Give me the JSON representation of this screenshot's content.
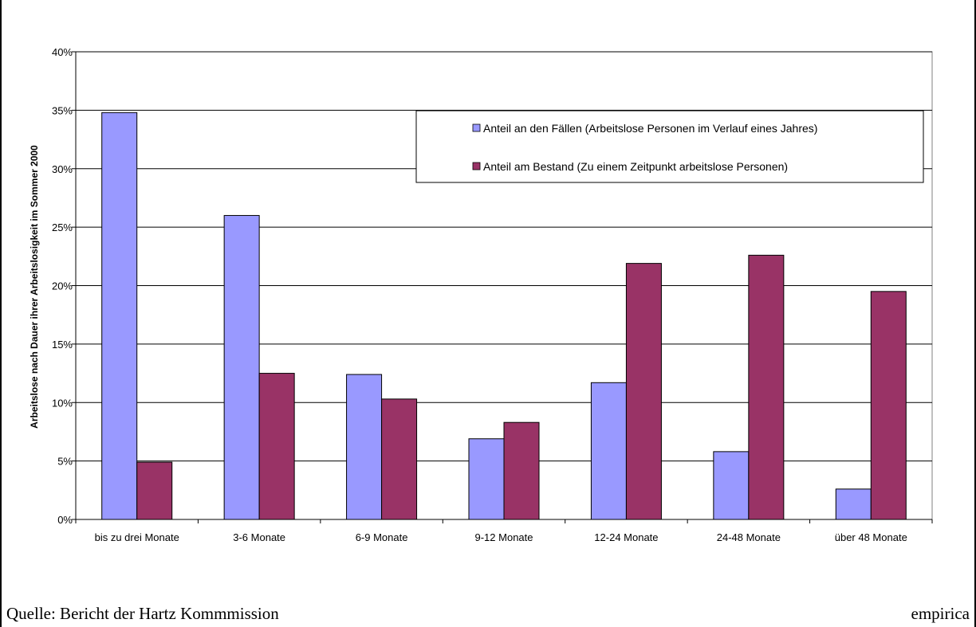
{
  "chart_data": {
    "type": "bar",
    "categories": [
      "bis zu drei Monate",
      "3-6 Monate",
      "6-9 Monate",
      "9-12 Monate",
      "12-24 Monate",
      "24-48 Monate",
      "über 48 Monate"
    ],
    "series": [
      {
        "name": "Anteil an den Fällen (Arbeitslose Personen im Verlauf eines Jahres)",
        "values": [
          34.8,
          26.0,
          12.4,
          6.9,
          11.7,
          5.8,
          2.6
        ],
        "color": "#9999ff"
      },
      {
        "name": "Anteil am Bestand (Zu einem Zeitpunkt arbeitslose Personen)",
        "values": [
          4.9,
          12.5,
          10.3,
          8.3,
          21.9,
          22.6,
          19.5
        ],
        "color": "#993366"
      }
    ],
    "ylabel": "Arbeitslose nach Dauer ihrer Arbeitslosigkeit im Sommer 2000",
    "ylim": [
      0,
      40
    ],
    "yticks": [
      "0%",
      "5%",
      "10%",
      "15%",
      "20%",
      "25%",
      "30%",
      "35%",
      "40%"
    ],
    "legend_position": "top-right",
    "grid": true
  },
  "footer": {
    "source": "Quelle: Bericht der Hartz Kommmission",
    "brand": "empirica"
  }
}
